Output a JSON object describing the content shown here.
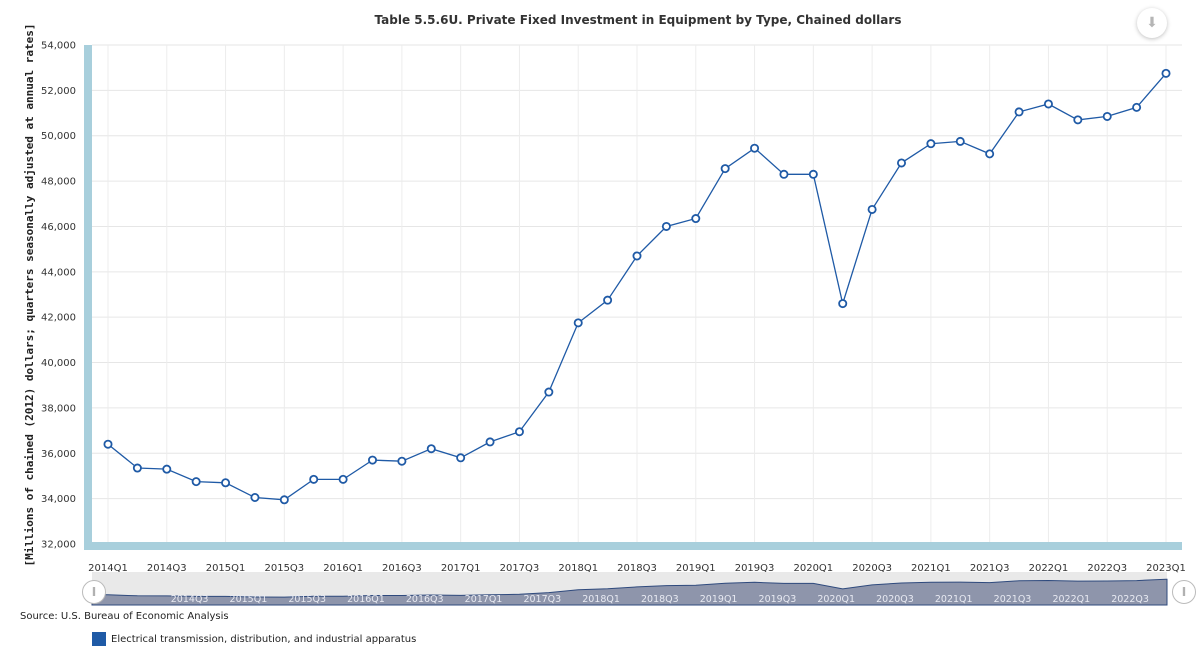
{
  "chart_data": {
    "type": "line",
    "title": "Table 5.5.6U. Private Fixed Investment in Equipment by Type, Chained dollars",
    "ylabel": "[Millions of chained (2012) dollars; quarters seasonally adjusted at annual rates]",
    "ylim": [
      32000,
      54000
    ],
    "yticks": [
      "32,000",
      "34,000",
      "36,000",
      "38,000",
      "40,000",
      "42,000",
      "44,000",
      "46,000",
      "48,000",
      "50,000",
      "52,000",
      "54,000"
    ],
    "grid": true,
    "legend_position": "bottom-left",
    "x": [
      "2014Q1",
      "2014Q2",
      "2014Q3",
      "2014Q4",
      "2015Q1",
      "2015Q2",
      "2015Q3",
      "2015Q4",
      "2016Q1",
      "2016Q2",
      "2016Q3",
      "2016Q4",
      "2017Q1",
      "2017Q2",
      "2017Q3",
      "2017Q4",
      "2018Q1",
      "2018Q2",
      "2018Q3",
      "2018Q4",
      "2019Q1",
      "2019Q2",
      "2019Q3",
      "2019Q4",
      "2020Q1",
      "2020Q2",
      "2020Q3",
      "2020Q4",
      "2021Q1",
      "2021Q2",
      "2021Q3",
      "2021Q4",
      "2022Q1",
      "2022Q2",
      "2022Q3",
      "2022Q4",
      "2023Q1"
    ],
    "xticks": [
      "2014Q1",
      "2014Q3",
      "2015Q1",
      "2015Q3",
      "2016Q1",
      "2016Q3",
      "2017Q1",
      "2017Q3",
      "2018Q1",
      "2018Q3",
      "2019Q1",
      "2019Q3",
      "2020Q1",
      "2020Q3",
      "2021Q1",
      "2021Q3",
      "2022Q1",
      "2022Q3",
      "2023Q1"
    ],
    "navigator_ticks": [
      "2014Q3",
      "2015Q1",
      "2015Q3",
      "2016Q1",
      "2016Q3",
      "2017Q1",
      "2017Q3",
      "2018Q1",
      "2018Q3",
      "2019Q1",
      "2019Q3",
      "2020Q1",
      "2020Q3",
      "2021Q1",
      "2021Q3",
      "2022Q1",
      "2022Q3"
    ],
    "series": [
      {
        "name": "Electrical transmission, distribution, and industrial apparatus",
        "color": "#1f5aa6",
        "values": [
          36400,
          35350,
          35300,
          34750,
          34700,
          34050,
          33950,
          34850,
          34850,
          35700,
          35650,
          36200,
          35800,
          36500,
          36950,
          38700,
          41750,
          42750,
          44700,
          46000,
          46350,
          48550,
          49450,
          48300,
          48300,
          42600,
          46750,
          48800,
          49650,
          49750,
          49200,
          51050,
          51400,
          50700,
          50850,
          51250,
          52750
        ]
      }
    ]
  },
  "source_text": "Source: U.S. Bureau of Economic Analysis",
  "download_icon": "download-icon"
}
